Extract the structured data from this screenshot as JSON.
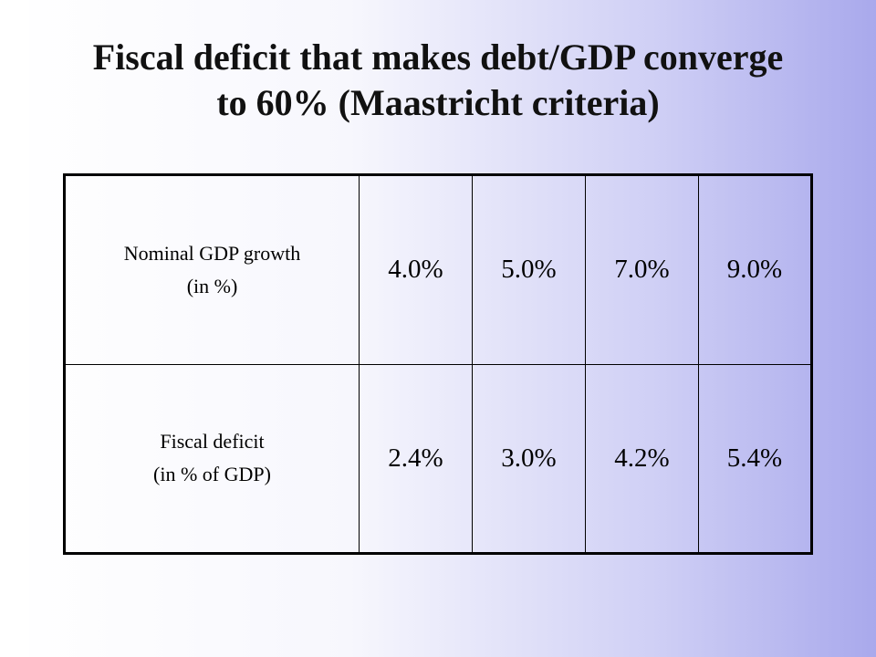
{
  "slide": {
    "title_line1": "Fiscal deficit that makes debt/GDP converge",
    "title_line2": "to 60% (Maastricht criteria)"
  },
  "table": {
    "rows": [
      {
        "label_line1": "Nominal GDP growth",
        "label_line2": "(in %)",
        "values": [
          "4.0%",
          "5.0%",
          "7.0%",
          "9.0%"
        ]
      },
      {
        "label_line1": "Fiscal deficit",
        "label_line2": "(in % of GDP)",
        "values": [
          "2.4%",
          "3.0%",
          "4.2%",
          "5.4%"
        ]
      }
    ]
  }
}
